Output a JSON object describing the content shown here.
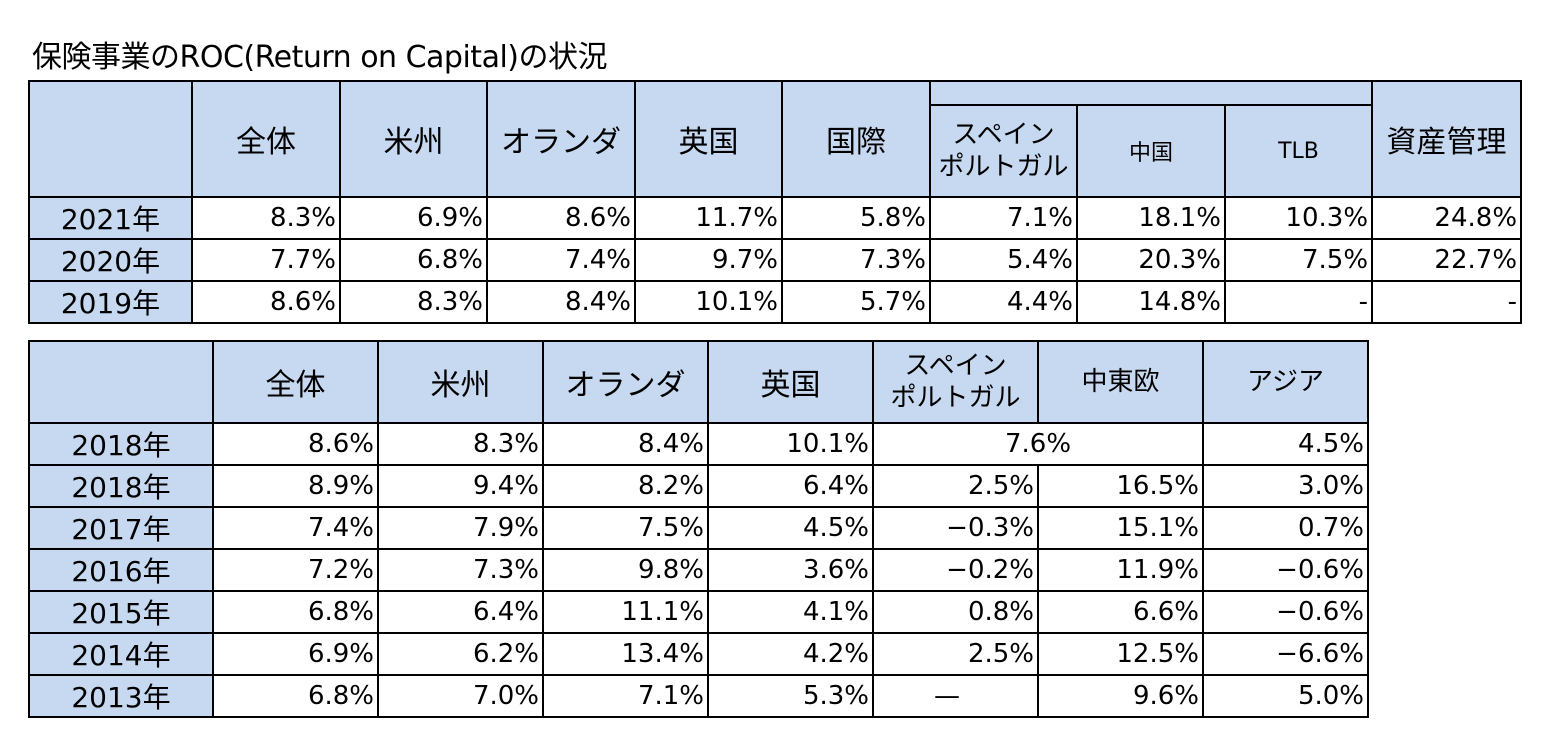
{
  "title": "保険事業のROC(Return on Capital)の状況",
  "table1": {
    "headers": {
      "blank": "",
      "all": "全体",
      "americas": "米州",
      "netherlands": "オランダ",
      "uk": "英国",
      "international": "国際",
      "spain_portugal_line1": "スペイン",
      "spain_portugal_line2": "ポルトガル",
      "china": "中国",
      "tlb": "TLB",
      "asset_mgmt": "資産管理"
    },
    "rows": [
      {
        "year": "2021年",
        "cells": [
          "8.3%",
          "6.9%",
          "8.6%",
          "11.7%",
          "5.8%",
          "7.1%",
          "18.1%",
          "10.3%",
          "24.8%"
        ]
      },
      {
        "year": "2020年",
        "cells": [
          "7.7%",
          "6.8%",
          "7.4%",
          "9.7%",
          "7.3%",
          "5.4%",
          "20.3%",
          "7.5%",
          "22.7%"
        ]
      },
      {
        "year": "2019年",
        "cells": [
          "8.6%",
          "8.3%",
          "8.4%",
          "10.1%",
          "5.7%",
          "4.4%",
          "14.8%",
          "-",
          "-"
        ]
      }
    ]
  },
  "table2": {
    "headers": {
      "blank": "",
      "all": "全体",
      "americas": "米州",
      "netherlands": "オランダ",
      "uk": "英国",
      "spain_portugal_line1": "スペイン",
      "spain_portugal_line2": "ポルトガル",
      "cee": "中東欧",
      "asia": "アジア"
    },
    "merged_row": {
      "year": "2018年",
      "cells": [
        "8.6%",
        "8.3%",
        "8.4%",
        "10.1%"
      ],
      "merged": "7.6%",
      "last": "4.5%"
    },
    "rows": [
      {
        "year": "2018年",
        "cells": [
          "8.9%",
          "9.4%",
          "8.2%",
          "6.4%",
          "2.5%",
          "16.5%",
          "3.0%"
        ]
      },
      {
        "year": "2017年",
        "cells": [
          "7.4%",
          "7.9%",
          "7.5%",
          "4.5%",
          "−0.3%",
          "15.1%",
          "0.7%"
        ]
      },
      {
        "year": "2016年",
        "cells": [
          "7.2%",
          "7.3%",
          "9.8%",
          "3.6%",
          "−0.2%",
          "11.9%",
          "−0.6%"
        ]
      },
      {
        "year": "2015年",
        "cells": [
          "6.8%",
          "6.4%",
          "11.1%",
          "4.1%",
          "0.8%",
          "6.6%",
          "−0.6%"
        ]
      },
      {
        "year": "2014年",
        "cells": [
          "6.9%",
          "6.2%",
          "13.4%",
          "4.2%",
          "2.5%",
          "12.5%",
          "−6.6%"
        ]
      },
      {
        "year": "2013年",
        "cells": [
          "6.8%",
          "7.0%",
          "7.1%",
          "5.3%",
          "—",
          "9.6%",
          "5.0%"
        ]
      }
    ]
  }
}
